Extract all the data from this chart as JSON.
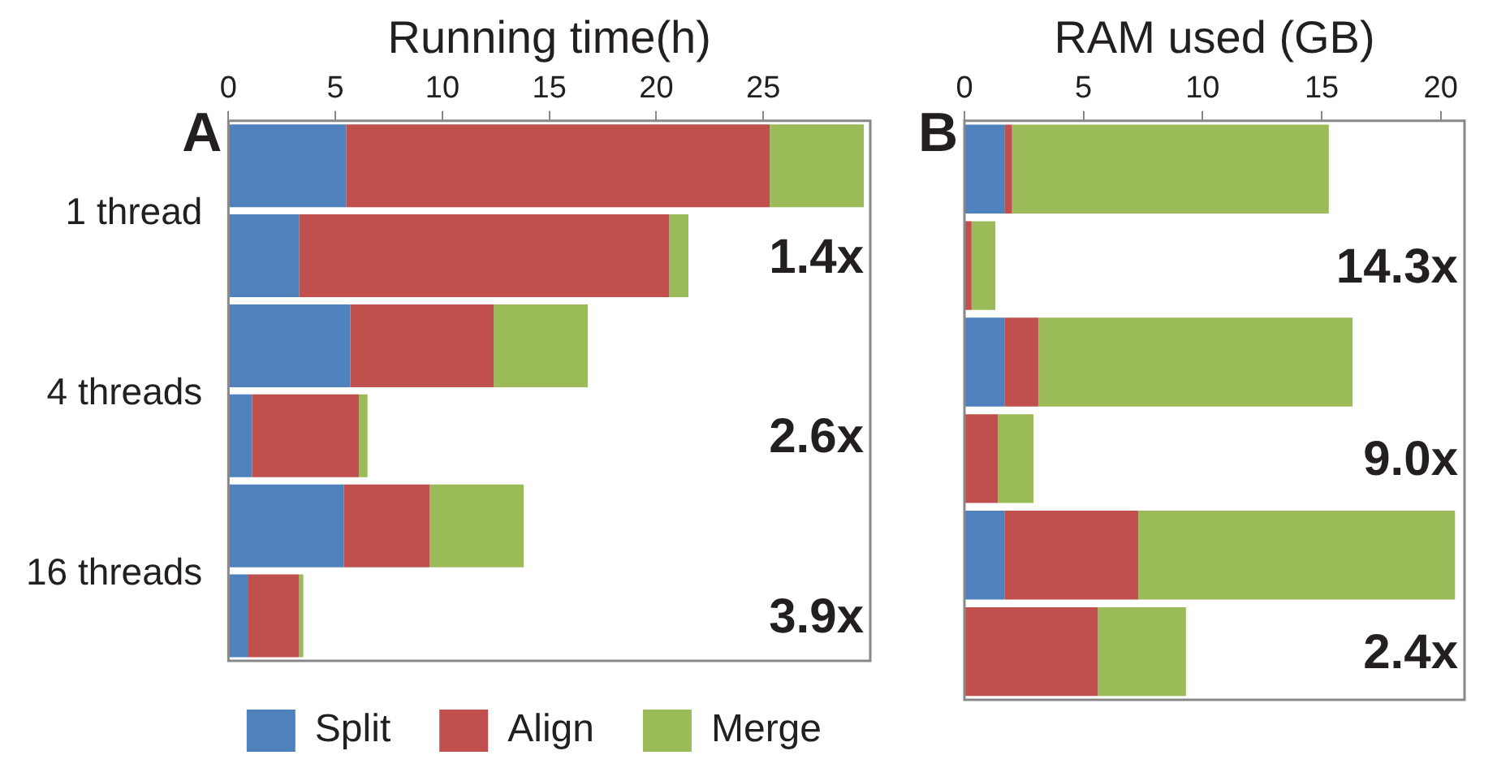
{
  "chart_data": [
    {
      "type": "bar",
      "orientation": "horizontal",
      "stacked": true,
      "title": "Running time(h)",
      "categories": [
        "1 thread",
        null,
        "4 threads",
        null,
        "16 threads",
        null
      ],
      "series": [
        {
          "name": "Split",
          "color": "#4f81bd",
          "values": [
            5.5,
            3.3,
            5.7,
            1.1,
            5.4,
            0.9
          ]
        },
        {
          "name": "Align",
          "color": "#c0504d",
          "values": [
            19.8,
            17.3,
            6.7,
            5.0,
            4.0,
            2.4
          ]
        },
        {
          "name": "Merge",
          "color": "#9bbb59",
          "values": [
            4.4,
            0.9,
            4.4,
            0.4,
            4.4,
            0.2
          ]
        }
      ],
      "xlim": [
        0,
        30
      ],
      "xticks": [
        0,
        5,
        10,
        15,
        20,
        25
      ],
      "grid": false,
      "legend": "bottom",
      "annotations": [
        "A",
        "1.4x",
        "2.6x",
        "3.9x"
      ]
    },
    {
      "type": "bar",
      "orientation": "horizontal",
      "stacked": true,
      "title": "RAM used (GB)",
      "categories": [
        null,
        null,
        null,
        null,
        null,
        null
      ],
      "series": [
        {
          "color": "#4f81bd",
          "values": [
            1.7,
            0,
            1.7,
            0,
            1.7,
            0
          ]
        },
        {
          "color": "#c0504d",
          "values": [
            0.3,
            0.3,
            1.4,
            1.4,
            5.6,
            5.6
          ]
        },
        {
          "color": "#9bbb59",
          "values": [
            13.3,
            1.0,
            13.2,
            1.5,
            13.3,
            3.7
          ]
        }
      ],
      "xlim": [
        0,
        21
      ],
      "xticks": [
        0,
        5,
        10,
        15,
        20
      ],
      "grid": false,
      "tick_labels": "x",
      "legend": false,
      "annotations": [
        "B",
        "14.3x",
        "9.0x",
        "2.4x"
      ]
    }
  ]
}
